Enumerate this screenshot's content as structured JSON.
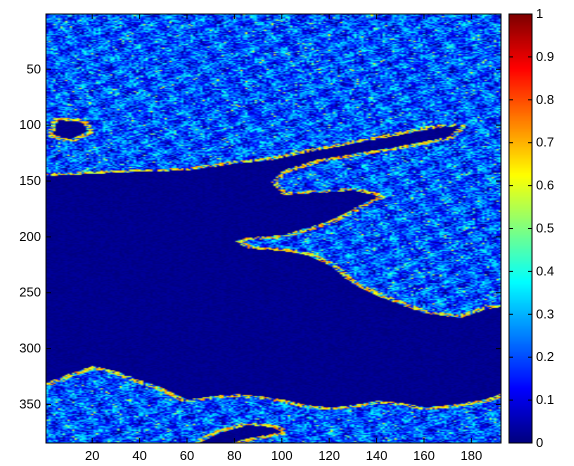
{
  "chart_data": {
    "type": "heatmap",
    "title": "",
    "xlabel": "",
    "ylabel": "",
    "xlim": [
      0.5,
      192.5
    ],
    "ylim": [
      0.5,
      384.5
    ],
    "y_reversed": true,
    "x_ticks": [
      20,
      40,
      60,
      80,
      100,
      120,
      140,
      160,
      180
    ],
    "x_tick_labels": [
      "20",
      "40",
      "60",
      "80",
      "100",
      "120",
      "140",
      "160",
      "180"
    ],
    "y_ticks": [
      50,
      100,
      150,
      200,
      250,
      300,
      350
    ],
    "y_tick_labels": [
      "50",
      "100",
      "150",
      "200",
      "250",
      "300",
      "350"
    ],
    "colorbar": {
      "colormap": "jet",
      "range": [
        0,
        1
      ],
      "ticks": [
        0,
        0.1,
        0.2,
        0.3,
        0.4,
        0.5,
        0.6,
        0.7,
        0.8,
        0.9,
        1
      ],
      "tick_labels": [
        "0",
        "0.1",
        "0.2",
        "0.3",
        "0.4",
        "0.5",
        "0.6",
        "0.7",
        "0.8",
        "0.9",
        "1"
      ]
    },
    "regions": {
      "background_value": 0.2,
      "water_value": 0.0,
      "edge_value": 0.65,
      "water_polygon": [
        [
          0,
          145
        ],
        [
          30,
          142
        ],
        [
          60,
          140
        ],
        [
          80,
          134
        ],
        [
          95,
          131
        ],
        [
          110,
          124
        ],
        [
          125,
          118
        ],
        [
          140,
          112
        ],
        [
          155,
          106
        ],
        [
          165,
          102
        ],
        [
          175,
          100
        ],
        [
          170,
          110
        ],
        [
          150,
          118
        ],
        [
          130,
          125
        ],
        [
          115,
          130
        ],
        [
          100,
          140
        ],
        [
          95,
          150
        ],
        [
          100,
          162
        ],
        [
          115,
          160
        ],
        [
          130,
          158
        ],
        [
          140,
          163
        ],
        [
          120,
          185
        ],
        [
          100,
          198
        ],
        [
          85,
          200
        ],
        [
          80,
          203
        ],
        [
          85,
          210
        ],
        [
          100,
          212
        ],
        [
          110,
          216
        ],
        [
          120,
          225
        ],
        [
          130,
          243
        ],
        [
          143,
          255
        ],
        [
          160,
          268
        ],
        [
          175,
          272
        ],
        [
          185,
          265
        ],
        [
          192,
          262
        ],
        [
          192,
          340
        ],
        [
          185,
          345
        ],
        [
          170,
          350
        ],
        [
          160,
          352
        ],
        [
          150,
          348
        ],
        [
          140,
          346
        ],
        [
          130,
          350
        ],
        [
          120,
          352
        ],
        [
          110,
          350
        ],
        [
          100,
          345
        ],
        [
          90,
          342
        ],
        [
          80,
          340
        ],
        [
          70,
          342
        ],
        [
          60,
          345
        ],
        [
          50,
          335
        ],
        [
          40,
          328
        ],
        [
          30,
          320
        ],
        [
          20,
          315
        ],
        [
          10,
          322
        ],
        [
          0,
          330
        ]
      ],
      "pond_polygon": [
        [
          5,
          95
        ],
        [
          15,
          97
        ],
        [
          18,
          105
        ],
        [
          10,
          112
        ],
        [
          3,
          108
        ]
      ],
      "lower_water_polygon": [
        [
          65,
          384
        ],
        [
          72,
          376
        ],
        [
          85,
          368
        ],
        [
          95,
          370
        ],
        [
          100,
          374
        ],
        [
          85,
          380
        ],
        [
          78,
          384
        ]
      ],
      "texture_seed": 7
    }
  }
}
